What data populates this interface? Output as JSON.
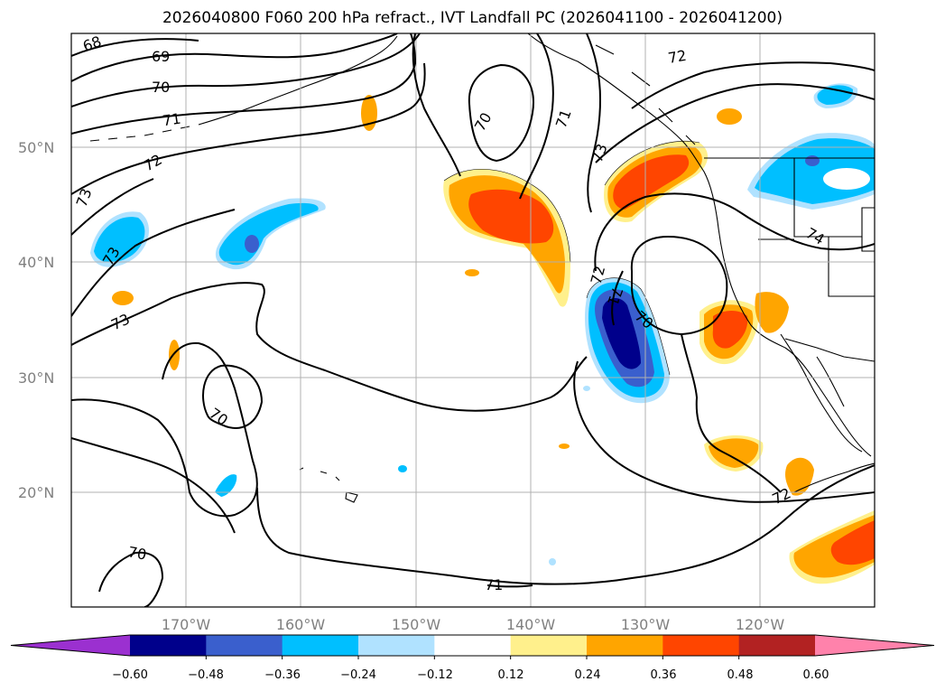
{
  "title": "2026040800 F060 200 hPa refract., IVT Landfall PC (2026041100 - 2026041200)",
  "axes": {
    "lat_labels": [
      "50°N",
      "40°N",
      "30°N",
      "20°N"
    ],
    "lon_labels": [
      "170°W",
      "160°W",
      "150°W",
      "140°W",
      "130°W",
      "120°W"
    ]
  },
  "contour_labels": [
    "68",
    "69",
    "70",
    "71",
    "72",
    "73",
    "73",
    "73",
    "70",
    "71",
    "73",
    "72",
    "74",
    "72",
    "71",
    "70",
    "70",
    "70",
    "71",
    "72"
  ],
  "colorbar": {
    "tick_labels": [
      "−0.60",
      "−0.48",
      "−0.36",
      "−0.24",
      "−0.12",
      "0.12",
      "0.24",
      "0.36",
      "0.48",
      "0.60"
    ],
    "colors": [
      "#9b30d0",
      "#00008b",
      "#3a5fcd",
      "#00bfff",
      "#b0e2ff",
      "#ffffff",
      "#fff08c",
      "#ffa500",
      "#ff4500",
      "#b22222",
      "#ff82ab"
    ]
  }
}
